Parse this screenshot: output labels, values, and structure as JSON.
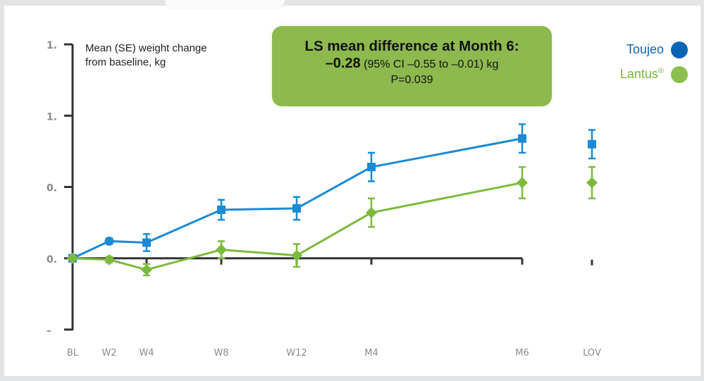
{
  "callout": {
    "title": "LS mean difference at Month 6:",
    "diff_value": "–0.28",
    "ci_text": " (95% CI –0.55 to –0.01) kg",
    "p_value": "P=0.039",
    "bg_color": "#8db94f"
  },
  "y_axis_title": {
    "line1": "Mean (SE) weight change",
    "line2": "from baseline, kg"
  },
  "legend": [
    {
      "label": "Toujeo",
      "superscript": "",
      "color": "#0a64b4",
      "text_color": "#1060b0"
    },
    {
      "label": "Lantus",
      "superscript": "®",
      "color": "#8cbf4e",
      "text_color": "#7cb342"
    }
  ],
  "chart_data": {
    "type": "line",
    "title": "LS mean difference at Month 6: –0.28 (95% CI –0.55 to –0.01) kg, P=0.039",
    "ylabel": "Mean (SE) weight change from baseline, kg",
    "xlabel": "",
    "categories": [
      "BL",
      "W2",
      "W4",
      "W8",
      "W12",
      "M4",
      "M6",
      "LOV"
    ],
    "connected_until_index": 6,
    "ylim": [
      -0.5,
      1.5
    ],
    "yticks": [
      1.5,
      1.0,
      0.5,
      0.0,
      -0.5
    ],
    "ytick_labels": [
      "1.",
      "1.",
      "0.",
      "0.",
      "–"
    ],
    "grid": false,
    "legend_position": "top-right",
    "series": [
      {
        "name": "Toujeo",
        "color": "#1a8ad4",
        "marker": "square",
        "values": [
          0.0,
          0.12,
          0.11,
          0.34,
          0.35,
          0.64,
          0.84,
          0.8
        ],
        "se": [
          0.0,
          0.02,
          0.06,
          0.07,
          0.08,
          0.1,
          0.1,
          0.1
        ]
      },
      {
        "name": "Lantus®",
        "color": "#7cba3d",
        "marker": "diamond",
        "values": [
          0.0,
          -0.01,
          -0.08,
          0.06,
          0.02,
          0.32,
          0.53,
          0.53
        ],
        "se": [
          0.0,
          0.02,
          0.04,
          0.06,
          0.08,
          0.1,
          0.11,
          0.11
        ]
      }
    ]
  }
}
